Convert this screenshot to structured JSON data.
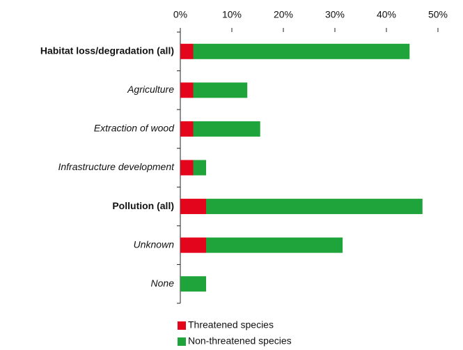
{
  "chart_data": {
    "type": "stacked_bar_horizontal",
    "categories": [
      "Habitat loss/degradation (all)",
      "Agriculture",
      "Extraction of wood",
      "Infrastructure development",
      "Pollution (all)",
      "Unknown",
      "None"
    ],
    "category_styles": [
      "bold",
      "italic",
      "italic",
      "italic",
      "bold",
      "italic",
      "italic"
    ],
    "series": [
      {
        "name": "Threatened species",
        "color": "#e3051b",
        "values": [
          2.5,
          2.5,
          2.5,
          2.5,
          5,
          5,
          0
        ]
      },
      {
        "name": "Non-threatened species",
        "color": "#1ea43a",
        "values": [
          42,
          10.5,
          13,
          2.5,
          42,
          26.5,
          5
        ]
      }
    ],
    "xlim": [
      0,
      50
    ],
    "xticks": [
      {
        "value": 0,
        "label": "0%"
      },
      {
        "value": 10,
        "label": "10%"
      },
      {
        "value": 20,
        "label": "20%"
      },
      {
        "value": 30,
        "label": "30%"
      },
      {
        "value": 40,
        "label": "40%"
      },
      {
        "value": 50,
        "label": "50%"
      }
    ],
    "legend": "bottom"
  }
}
